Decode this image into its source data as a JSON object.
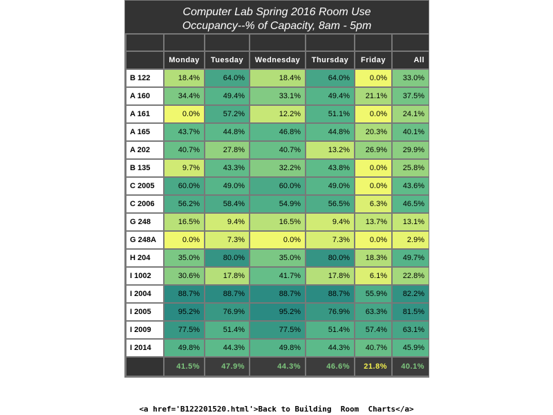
{
  "chart_data": {
    "type": "table",
    "title": "Computer Lab Spring 2016 Room Use",
    "subtitle": "Occupancy--% of Capacity, 8am - 5pm",
    "columns": [
      "Monday",
      "Tuesday",
      "Wednesday",
      "Thursday",
      "Friday",
      "All"
    ],
    "rows": [
      {
        "room": "B 122",
        "values": [
          18.4,
          64.0,
          18.4,
          64.0,
          0.0,
          33.0
        ]
      },
      {
        "room": "A 160",
        "values": [
          34.4,
          49.4,
          33.1,
          49.4,
          21.1,
          37.5
        ]
      },
      {
        "room": "A 161",
        "values": [
          0.0,
          57.2,
          12.2,
          51.1,
          0.0,
          24.1
        ]
      },
      {
        "room": "A 165",
        "values": [
          43.7,
          44.8,
          46.8,
          44.8,
          20.3,
          40.1
        ]
      },
      {
        "room": "A 202",
        "values": [
          40.7,
          27.8,
          40.7,
          13.2,
          26.9,
          29.9
        ]
      },
      {
        "room": "B 135",
        "values": [
          9.7,
          43.3,
          32.2,
          43.8,
          0.0,
          25.8
        ]
      },
      {
        "room": "C 2005",
        "values": [
          60.0,
          49.0,
          60.0,
          49.0,
          0.0,
          43.6
        ]
      },
      {
        "room": "C 2006",
        "values": [
          56.2,
          58.4,
          54.9,
          56.5,
          6.3,
          46.5
        ]
      },
      {
        "room": "G 248",
        "values": [
          16.5,
          9.4,
          16.5,
          9.4,
          13.7,
          13.1
        ]
      },
      {
        "room": "G 248A",
        "values": [
          0.0,
          7.3,
          0.0,
          7.3,
          0.0,
          2.9
        ]
      },
      {
        "room": "H 204",
        "values": [
          35.0,
          80.0,
          35.0,
          80.0,
          18.3,
          49.7
        ]
      },
      {
        "room": "I 1002",
        "values": [
          30.6,
          17.8,
          41.7,
          17.8,
          6.1,
          22.8
        ]
      },
      {
        "room": "I 2004",
        "values": [
          88.7,
          88.7,
          88.7,
          88.7,
          55.9,
          82.2
        ]
      },
      {
        "room": "I 2005",
        "values": [
          95.2,
          76.9,
          95.2,
          76.9,
          63.3,
          81.5
        ]
      },
      {
        "room": "I 2009",
        "values": [
          77.5,
          51.4,
          77.5,
          51.4,
          57.4,
          63.1
        ]
      },
      {
        "room": "I 2014",
        "values": [
          49.8,
          44.3,
          49.8,
          44.3,
          40.7,
          45.9
        ]
      }
    ],
    "totals": [
      41.5,
      47.9,
      44.3,
      46.6,
      21.8,
      40.1
    ],
    "value_suffix": "%",
    "color_scale": {
      "low": "#f0f86e",
      "mid": "#5ab98a",
      "high": "#2a8a82"
    },
    "colors": {
      "header_bg": "#333333",
      "total_text": "#7ec87e",
      "total_text_friday": "#f2ef4e"
    }
  },
  "footer": {
    "link_text": "<a href='B122201520.html'>Back to Building  Room  Charts</a>"
  }
}
